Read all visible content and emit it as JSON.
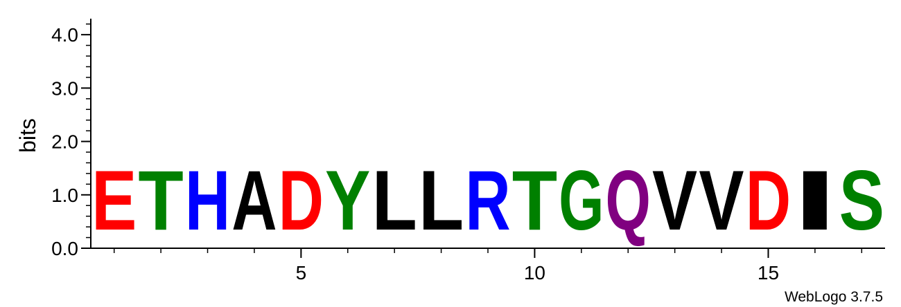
{
  "chart_data": {
    "type": "sequence-logo",
    "ylabel": "bits",
    "ylim": [
      0,
      4.3
    ],
    "y_ticks": [
      {
        "value": 0,
        "label": "0.0"
      },
      {
        "value": 1,
        "label": "1.0"
      },
      {
        "value": 2,
        "label": "2.0"
      },
      {
        "value": 3,
        "label": "3.0"
      },
      {
        "value": 4,
        "label": "4.0"
      }
    ],
    "y_minor_step": 0.2,
    "xlim": [
      0.5,
      17.5
    ],
    "x_ticks": [
      {
        "value": 5,
        "label": "5"
      },
      {
        "value": 10,
        "label": "10"
      },
      {
        "value": 15,
        "label": "15"
      }
    ],
    "positions": [
      {
        "pos": 1,
        "letter": "E",
        "bits": 1.78,
        "color": "#ff0000"
      },
      {
        "pos": 2,
        "letter": "T",
        "bits": 1.78,
        "color": "#008000"
      },
      {
        "pos": 3,
        "letter": "H",
        "bits": 1.78,
        "color": "#0000ff"
      },
      {
        "pos": 4,
        "letter": "A",
        "bits": 1.78,
        "color": "#000000"
      },
      {
        "pos": 5,
        "letter": "D",
        "bits": 1.78,
        "color": "#ff0000"
      },
      {
        "pos": 6,
        "letter": "Y",
        "bits": 1.78,
        "color": "#008000"
      },
      {
        "pos": 7,
        "letter": "L",
        "bits": 1.78,
        "color": "#000000"
      },
      {
        "pos": 8,
        "letter": "L",
        "bits": 1.78,
        "color": "#000000"
      },
      {
        "pos": 9,
        "letter": "R",
        "bits": 1.78,
        "color": "#0000ff"
      },
      {
        "pos": 10,
        "letter": "T",
        "bits": 1.78,
        "color": "#008000"
      },
      {
        "pos": 11,
        "letter": "G",
        "bits": 1.78,
        "color": "#008000"
      },
      {
        "pos": 12,
        "letter": "Q",
        "bits": 1.78,
        "color": "#800080"
      },
      {
        "pos": 13,
        "letter": "V",
        "bits": 1.78,
        "color": "#000000"
      },
      {
        "pos": 14,
        "letter": "V",
        "bits": 1.78,
        "color": "#000000"
      },
      {
        "pos": 15,
        "letter": "D",
        "bits": 1.78,
        "color": "#ff0000"
      },
      {
        "pos": 16,
        "letter": "I",
        "bits": 1.78,
        "color": "#000000"
      },
      {
        "pos": 17,
        "letter": "S",
        "bits": 1.78,
        "color": "#008000"
      }
    ]
  },
  "credit": "WebLogo 3.7.5"
}
